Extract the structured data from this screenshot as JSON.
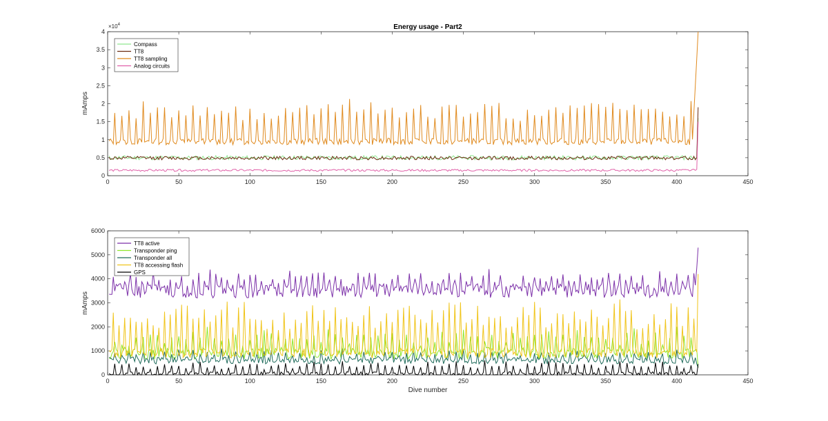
{
  "chart_data": [
    {
      "type": "line",
      "title": "Energy usage - Part2",
      "xlabel": "",
      "ylabel": "mAmps",
      "y_exponent_label": "×10",
      "y_exponent_power": "4",
      "xlim": [
        0,
        450
      ],
      "ylim": [
        0,
        40000
      ],
      "xticks": [
        "0",
        "50",
        "100",
        "150",
        "200",
        "250",
        "300",
        "350",
        "400",
        "450"
      ],
      "yticks": [
        "0",
        "0.5",
        "1",
        "1.5",
        "2",
        "2.5",
        "3",
        "3.5",
        "4"
      ],
      "legend_placement": "top-left",
      "series": [
        {
          "name": "Compass",
          "color": "#8ee68e",
          "pattern": {
            "base": 5000,
            "spike": 0,
            "noise": 600,
            "period": 7,
            "seed": 11,
            "end": [
              1,
              16000
            ]
          }
        },
        {
          "name": "TT8",
          "color": "#6b2a10",
          "pattern": {
            "base": 4900,
            "spike": 0,
            "noise": 500,
            "period": 7,
            "seed": 12,
            "end": [
              1,
              19000
            ]
          }
        },
        {
          "name": "TT8 sampling",
          "color": "#e08a1e",
          "pattern": {
            "base": 9500,
            "spike": 8500,
            "noise": 900,
            "period": 5,
            "seed": 13,
            "end": [
              4,
              40000
            ]
          }
        },
        {
          "name": "Analog circuits",
          "color": "#e060a8",
          "pattern": {
            "base": 1500,
            "spike": 0,
            "noise": 300,
            "period": 7,
            "seed": 14,
            "end": [
              1,
              15000
            ]
          }
        }
      ]
    },
    {
      "type": "line",
      "title": "",
      "xlabel": "Dive number",
      "ylabel": "mAmps",
      "xlim": [
        0,
        450
      ],
      "ylim": [
        0,
        6000
      ],
      "xticks": [
        "0",
        "50",
        "100",
        "150",
        "200",
        "250",
        "300",
        "350",
        "400",
        "450"
      ],
      "yticks": [
        "0",
        "1000",
        "2000",
        "3000",
        "4000",
        "5000",
        "6000"
      ],
      "legend_placement": "top-left",
      "series": [
        {
          "name": "TT8 active",
          "color": "#7b2fa8",
          "pattern": {
            "base": 3500,
            "spike": 500,
            "noise": 300,
            "period": 4,
            "seed": 21,
            "end": [
              2,
              5300
            ]
          }
        },
        {
          "name": "Transponder ping",
          "color": "#8ee62a",
          "pattern": {
            "base": 900,
            "spike": 700,
            "noise": 250,
            "period": 5,
            "seed": 22,
            "end": [
              1,
              300
            ]
          }
        },
        {
          "name": "Transponder all",
          "color": "#1e6b5a",
          "pattern": {
            "base": 600,
            "spike": 300,
            "noise": 150,
            "period": 5,
            "seed": 23,
            "end": [
              1,
              300
            ]
          }
        },
        {
          "name": "TT8 accessing flash",
          "color": "#f0c419",
          "pattern": {
            "base": 900,
            "spike": 1600,
            "noise": 200,
            "period": 4,
            "seed": 24,
            "end": [
              1,
              4200
            ]
          }
        },
        {
          "name": "GPS",
          "color": "#000000",
          "pattern": {
            "base": 30,
            "spike": 380,
            "noise": 100,
            "period": 5,
            "seed": 25,
            "end": [
              0,
              300
            ]
          }
        }
      ]
    }
  ]
}
